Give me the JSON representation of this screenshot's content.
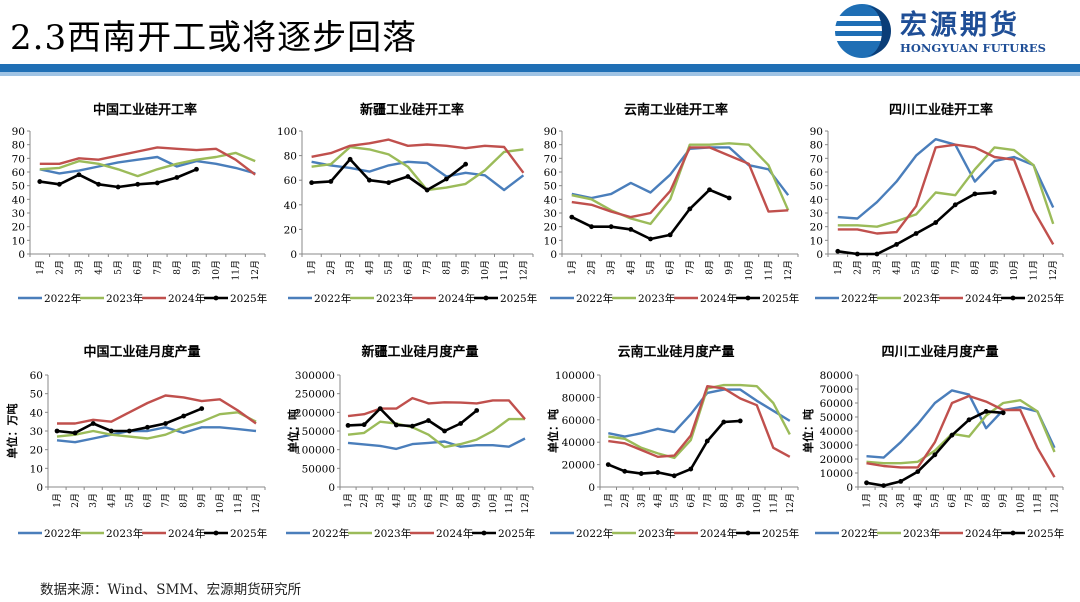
{
  "header": {
    "title": "2.3西南开工或将逐步回落",
    "logo_text": "宏源期货",
    "logo_subtext": "HONGYUAN FUTURES",
    "band_color": "#1f6fb5"
  },
  "source_note": "数据来源：Wind、SMM、宏源期货研究所",
  "colors": {
    "2022年": "#4a7ebb",
    "2023年": "#9bbb59",
    "2024年": "#c0504d",
    "2025年": "#000000"
  },
  "chart_data": [
    {
      "type": "line",
      "title": "中国工业硅开工率",
      "ylabel": "",
      "ylim": [
        0,
        90
      ],
      "yticks": [
        0,
        10,
        20,
        30,
        40,
        50,
        60,
        70,
        80,
        90
      ],
      "categories": [
        "1月",
        "2月",
        "3月",
        "4月",
        "5月",
        "6月",
        "7月",
        "8月",
        "9月",
        "10月",
        "11月",
        "12月"
      ],
      "series": [
        {
          "name": "2022年",
          "values": [
            62,
            59,
            61,
            64,
            67,
            69,
            71,
            64,
            68,
            66,
            63,
            59
          ]
        },
        {
          "name": "2023年",
          "values": [
            62,
            63,
            68,
            66,
            62,
            57,
            62,
            66,
            69,
            71,
            74,
            68
          ]
        },
        {
          "name": "2024年",
          "values": [
            66,
            66,
            70,
            69,
            72,
            75,
            78,
            77,
            76,
            77,
            69,
            58
          ]
        },
        {
          "name": "2025年",
          "values": [
            53,
            51,
            58,
            51,
            49,
            51,
            52,
            56,
            62,
            null,
            null,
            null
          ]
        }
      ],
      "legend": [
        "2022年",
        "2023年",
        "2024年",
        "2025年"
      ]
    },
    {
      "type": "line",
      "title": "新疆工业硅开工率",
      "ylabel": "",
      "ylim": [
        0,
        100
      ],
      "yticks": [
        0,
        20,
        40,
        60,
        80,
        100
      ],
      "categories": [
        "1月",
        "2月",
        "3月",
        "4月",
        "5月",
        "6月",
        "7月",
        "8月",
        "9月",
        "10月",
        "11月",
        "12月"
      ],
      "series": [
        {
          "name": "2022年",
          "values": [
            75,
            72,
            70,
            67,
            72,
            75,
            74,
            63,
            66,
            64,
            52,
            64
          ]
        },
        {
          "name": "2023年",
          "values": [
            71,
            73,
            87,
            85,
            81,
            71,
            52,
            54,
            57,
            68,
            83,
            85
          ]
        },
        {
          "name": "2024年",
          "values": [
            79,
            82,
            88,
            90,
            93,
            88,
            89,
            88,
            86,
            88,
            87,
            66
          ]
        },
        {
          "name": "2025年",
          "values": [
            58,
            59,
            77,
            60,
            58,
            63,
            52,
            61,
            73,
            null,
            null,
            null
          ]
        }
      ],
      "legend": [
        "2022年",
        "2023年",
        "2024年",
        "2025年"
      ]
    },
    {
      "type": "line",
      "title": "云南工业硅开工率",
      "ylabel": "",
      "ylim": [
        0,
        90
      ],
      "yticks": [
        0,
        10,
        20,
        30,
        40,
        50,
        60,
        70,
        80,
        90
      ],
      "categories": [
        "1月",
        "2月",
        "3月",
        "4月",
        "5月",
        "6月",
        "7月",
        "8月",
        "9月",
        "10月",
        "11月",
        "12月"
      ],
      "series": [
        {
          "name": "2022年",
          "values": [
            44,
            41,
            44,
            52,
            45,
            58,
            77,
            78,
            78,
            65,
            62,
            43
          ]
        },
        {
          "name": "2023年",
          "values": [
            43,
            40,
            32,
            26,
            22,
            40,
            80,
            80,
            81,
            80,
            65,
            32
          ]
        },
        {
          "name": "2024年",
          "values": [
            38,
            36,
            31,
            27,
            30,
            46,
            78,
            78,
            72,
            66,
            31,
            32
          ]
        },
        {
          "name": "2025年",
          "values": [
            27,
            20,
            20,
            18,
            11,
            14,
            33,
            47,
            41,
            null,
            null,
            null
          ]
        }
      ],
      "legend": [
        "2022年",
        "2023年",
        "2024年",
        "2025年"
      ]
    },
    {
      "type": "line",
      "title": "四川工业硅开工率",
      "ylabel": "",
      "ylim": [
        0,
        90
      ],
      "yticks": [
        0,
        10,
        20,
        30,
        40,
        50,
        60,
        70,
        80,
        90
      ],
      "categories": [
        "1月",
        "2月",
        "3月",
        "4月",
        "5月",
        "6月",
        "7月",
        "8月",
        "9月",
        "10月",
        "11月",
        "12月"
      ],
      "series": [
        {
          "name": "2022年",
          "values": [
            27,
            26,
            38,
            53,
            72,
            84,
            80,
            53,
            68,
            71,
            65,
            34
          ]
        },
        {
          "name": "2023年",
          "values": [
            21,
            21,
            20,
            24,
            29,
            45,
            43,
            62,
            78,
            76,
            65,
            22
          ]
        },
        {
          "name": "2024年",
          "values": [
            18,
            18,
            15,
            16,
            35,
            78,
            80,
            78,
            71,
            69,
            32,
            7
          ]
        },
        {
          "name": "2025年",
          "values": [
            2,
            0,
            0,
            7,
            15,
            23,
            36,
            44,
            45,
            null,
            null,
            null
          ]
        }
      ],
      "legend": [
        "2022年",
        "2023年",
        "2024年",
        "2025年"
      ]
    },
    {
      "type": "line",
      "title": "中国工业硅月度产量",
      "ylabel": "单位：万吨",
      "ylim": [
        0,
        60
      ],
      "yticks": [
        0,
        10,
        20,
        30,
        40,
        50,
        60
      ],
      "categories": [
        "1月",
        "2月",
        "3月",
        "4月",
        "5月",
        "6月",
        "7月",
        "8月",
        "9月",
        "10月",
        "11月",
        "12月"
      ],
      "series": [
        {
          "name": "2022年",
          "values": [
            25,
            24,
            26,
            28,
            30,
            30,
            32,
            29,
            32,
            32,
            31,
            30
          ]
        },
        {
          "name": "2023年",
          "values": [
            27,
            28,
            30,
            28,
            27,
            26,
            28,
            32,
            35,
            39,
            40,
            35
          ]
        },
        {
          "name": "2024年",
          "values": [
            34,
            34,
            36,
            35,
            40,
            45,
            49,
            48,
            46,
            47,
            41,
            34
          ]
        },
        {
          "name": "2025年",
          "values": [
            30,
            29,
            34,
            30,
            30,
            32,
            34,
            38,
            42,
            null,
            null,
            null
          ]
        }
      ],
      "legend": [
        "2022年",
        "2023年",
        "2024年",
        "2025年"
      ]
    },
    {
      "type": "line",
      "title": "新疆工业硅月度产量",
      "ylabel": "单位：吨",
      "ylim": [
        0,
        300000
      ],
      "yticks": [
        0,
        50000,
        100000,
        150000,
        200000,
        250000,
        300000
      ],
      "categories": [
        "1月",
        "2月",
        "3月",
        "4月",
        "5月",
        "6月",
        "7月",
        "8月",
        "9月",
        "10月",
        "11月",
        "12月"
      ],
      "series": [
        {
          "name": "2022年",
          "values": [
            118000,
            114000,
            110000,
            102000,
            115000,
            118000,
            122000,
            108000,
            112000,
            112000,
            108000,
            130000
          ]
        },
        {
          "name": "2023年",
          "values": [
            140000,
            145000,
            175000,
            170000,
            160000,
            140000,
            107000,
            115000,
            127000,
            150000,
            182000,
            182000
          ]
        },
        {
          "name": "2024年",
          "values": [
            190000,
            195000,
            210000,
            210000,
            238000,
            224000,
            227000,
            226000,
            224000,
            232000,
            232000,
            182000
          ]
        },
        {
          "name": "2025年",
          "values": [
            165000,
            167000,
            210000,
            166000,
            163000,
            178000,
            150000,
            170000,
            205000,
            null,
            null,
            null
          ]
        }
      ],
      "legend": [
        "2022年",
        "2023年",
        "2024年",
        "2025年"
      ]
    },
    {
      "type": "line",
      "title": "云南工业硅月度产量",
      "ylabel": "单位：吨",
      "ylim": [
        0,
        100000
      ],
      "yticks": [
        0,
        20000,
        40000,
        60000,
        80000,
        100000
      ],
      "categories": [
        "1月",
        "2月",
        "3月",
        "4月",
        "5月",
        "6月",
        "7月",
        "8月",
        "9月",
        "10月",
        "11月",
        "12月"
      ],
      "series": [
        {
          "name": "2022年",
          "values": [
            48000,
            45000,
            48000,
            52000,
            49000,
            65000,
            84000,
            87000,
            87000,
            77000,
            68000,
            59000
          ]
        },
        {
          "name": "2023年",
          "values": [
            45000,
            43000,
            35000,
            30000,
            26000,
            42000,
            88000,
            91000,
            91000,
            90000,
            75000,
            47000
          ]
        },
        {
          "name": "2024年",
          "values": [
            41000,
            39000,
            33000,
            27000,
            28000,
            46000,
            90000,
            88000,
            79000,
            73000,
            35000,
            27000
          ]
        },
        {
          "name": "2025年",
          "values": [
            20000,
            14000,
            12000,
            13000,
            10000,
            16000,
            41000,
            58000,
            59000,
            null,
            null,
            null
          ]
        }
      ],
      "legend": [
        "2022年",
        "2023年",
        "2024年",
        "2025年"
      ]
    },
    {
      "type": "line",
      "title": "四川工业硅月度产量",
      "ylabel": "单位：吨",
      "ylim": [
        0,
        80000
      ],
      "yticks": [
        0,
        10000,
        20000,
        30000,
        40000,
        50000,
        60000,
        70000,
        80000
      ],
      "categories": [
        "1月",
        "2月",
        "3月",
        "4月",
        "5月",
        "6月",
        "7月",
        "8月",
        "9月",
        "10月",
        "11月",
        "12月"
      ],
      "series": [
        {
          "name": "2022年",
          "values": [
            22000,
            21000,
            32000,
            45000,
            60000,
            69000,
            66000,
            42000,
            55000,
            57000,
            54000,
            28000
          ]
        },
        {
          "name": "2023年",
          "values": [
            18000,
            17000,
            17000,
            18000,
            26000,
            38000,
            36000,
            51000,
            60000,
            62000,
            54000,
            25000
          ]
        },
        {
          "name": "2024年",
          "values": [
            17000,
            15000,
            14000,
            14000,
            32000,
            60000,
            65000,
            61000,
            55000,
            55000,
            28000,
            7000
          ]
        },
        {
          "name": "2025年",
          "values": [
            3000,
            1000,
            4000,
            11000,
            23000,
            37000,
            48000,
            54000,
            53000,
            null,
            null,
            null
          ]
        }
      ],
      "legend": [
        "2022年",
        "2023年",
        "2024年",
        "2025年"
      ]
    }
  ]
}
